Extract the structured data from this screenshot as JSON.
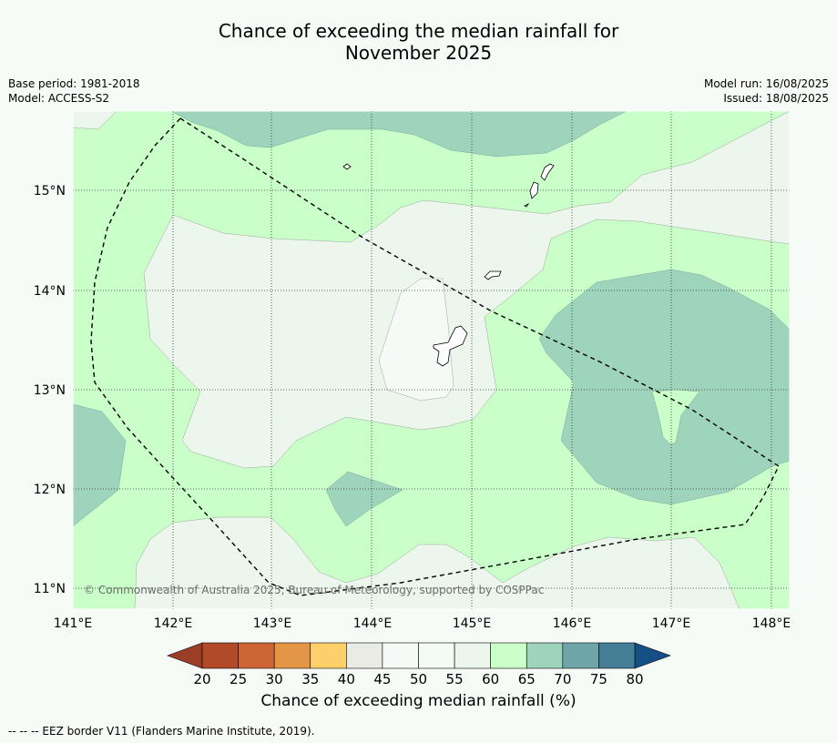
{
  "title_line1": "Chance of exceeding the median rainfall for",
  "title_line2": "November 2025",
  "base_period": "Base period: 1981-2018",
  "model": "Model: ACCESS-S2",
  "model_run": "Model run: 16/08/2025",
  "issued": "Issued: 18/08/2025",
  "copyright": "© Commonwealth of Australia 2025, Bureau of Meteorology, supported by COSPPac",
  "lon_labels": [
    "141°E",
    "142°E",
    "143°E",
    "144°E",
    "145°E",
    "146°E",
    "147°E",
    "148°E"
  ],
  "lat_labels": [
    "15°N",
    "14°N",
    "13°N",
    "12°N",
    "11°N"
  ],
  "colorbar": {
    "title": "Chance of exceeding median rainfall (%)",
    "ticks": [
      "20",
      "25",
      "30",
      "35",
      "40",
      "45",
      "50",
      "55",
      "60",
      "65",
      "70",
      "75",
      "80"
    ],
    "colors": [
      "#b14a29",
      "#cd6534",
      "#e49647",
      "#fed06b",
      "#ebebe5",
      "#f7f9f7",
      "#f4faf4",
      "#edf6ec",
      "#caffc9",
      "#9ed3bc",
      "#6fa5a9",
      "#437d96"
    ],
    "under_color": "#9b3e27",
    "over_color": "#164e86"
  },
  "footer": "--  --  -- EEZ border V11 (Flanders Marine Institute, 2019)."
}
